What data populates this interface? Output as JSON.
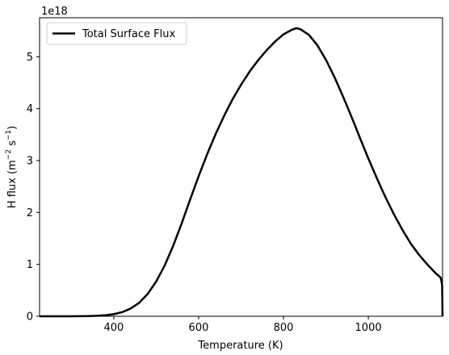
{
  "chart_data": {
    "type": "line",
    "title": "",
    "xlabel": "Temperature (K)",
    "ylabel_main": "H flux (m",
    "ylabel_exp1": "−2",
    "ylabel_mid": " s",
    "ylabel_exp2": "−1",
    "ylabel_end": ")",
    "offset_label": "1e18",
    "xlim": [
      225,
      1175
    ],
    "ylim": [
      0,
      5.75
    ],
    "xticks": [
      400,
      600,
      800,
      1000
    ],
    "xtick_labels": [
      "400",
      "600",
      "800",
      "1000"
    ],
    "yticks": [
      0,
      1,
      2,
      3,
      4,
      5
    ],
    "ytick_labels": [
      "0",
      "1",
      "2",
      "3",
      "4",
      "5"
    ],
    "y_scale_factor": "1e18",
    "grid": false,
    "legend_position": "upper-left",
    "series": [
      {
        "name": "Total Surface Flux",
        "color": "#000000",
        "x": [
          225,
          300,
          340,
          360,
          380,
          400,
          420,
          440,
          460,
          480,
          500,
          520,
          540,
          560,
          580,
          600,
          620,
          640,
          660,
          680,
          700,
          720,
          740,
          760,
          780,
          800,
          820,
          830,
          840,
          860,
          880,
          900,
          920,
          940,
          960,
          980,
          1000,
          1020,
          1040,
          1060,
          1080,
          1100,
          1120,
          1140,
          1160,
          1170,
          1172,
          1174,
          1175
        ],
        "y": [
          0.0,
          0.0,
          0.005,
          0.01,
          0.02,
          0.04,
          0.08,
          0.15,
          0.26,
          0.43,
          0.67,
          0.98,
          1.36,
          1.79,
          2.25,
          2.7,
          3.12,
          3.51,
          3.86,
          4.18,
          4.46,
          4.71,
          4.93,
          5.12,
          5.29,
          5.43,
          5.52,
          5.55,
          5.53,
          5.42,
          5.22,
          4.94,
          4.61,
          4.24,
          3.85,
          3.44,
          3.04,
          2.66,
          2.3,
          1.97,
          1.67,
          1.4,
          1.18,
          0.99,
          0.82,
          0.75,
          0.7,
          0.6,
          0.0
        ]
      }
    ]
  }
}
